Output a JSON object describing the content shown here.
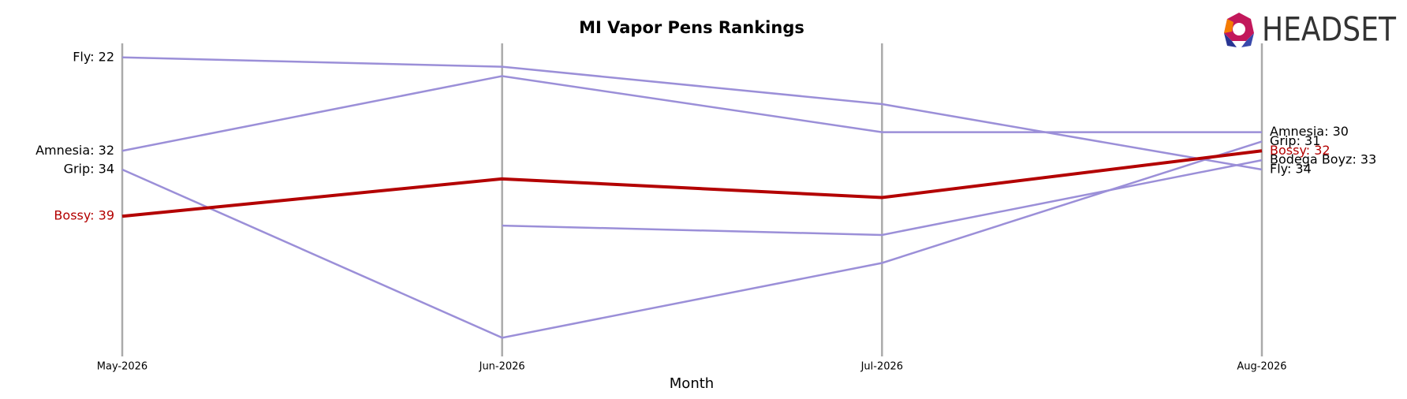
{
  "chart_data": {
    "type": "bump",
    "title": "MI Vapor Pens Rankings",
    "logo": "HEADSET",
    "x_label": "Month",
    "categories": [
      "May-2026",
      "Jun-2026",
      "Jul-2026",
      "Aug-2026"
    ],
    "ylim": [
      20.5,
      54
    ],
    "y_inverted": true,
    "grid": true,
    "series": [
      {
        "name": "Fly",
        "color": "#9b8fd8",
        "linewidth": 2.5,
        "values": [
          22,
          23,
          27,
          34
        ],
        "value_labels": [
          "Fly: 22",
          null,
          null,
          "Fly: 34"
        ]
      },
      {
        "name": "Amnesia",
        "color": "#9b8fd8",
        "linewidth": 2.5,
        "values": [
          32,
          24,
          30,
          30
        ],
        "value_labels": [
          "Amnesia: 32",
          null,
          null,
          "Amnesia: 30"
        ]
      },
      {
        "name": "Grip",
        "color": "#9b8fd8",
        "linewidth": 2.5,
        "values": [
          34,
          52,
          44,
          31
        ],
        "value_labels": [
          "Grip: 34",
          null,
          null,
          "Grip: 31"
        ]
      },
      {
        "name": "Bodega Boyz",
        "color": "#9b8fd8",
        "linewidth": 2.5,
        "values": [
          null,
          40,
          41,
          33
        ],
        "value_labels": [
          null,
          null,
          null,
          "Bodega Boyz: 33"
        ]
      },
      {
        "name": "Bossy",
        "color": "#b30000",
        "linewidth": 4,
        "values": [
          39,
          35,
          37,
          32
        ],
        "value_labels": [
          "Bossy: 39",
          null,
          null,
          "Bossy: 32"
        ]
      }
    ]
  }
}
